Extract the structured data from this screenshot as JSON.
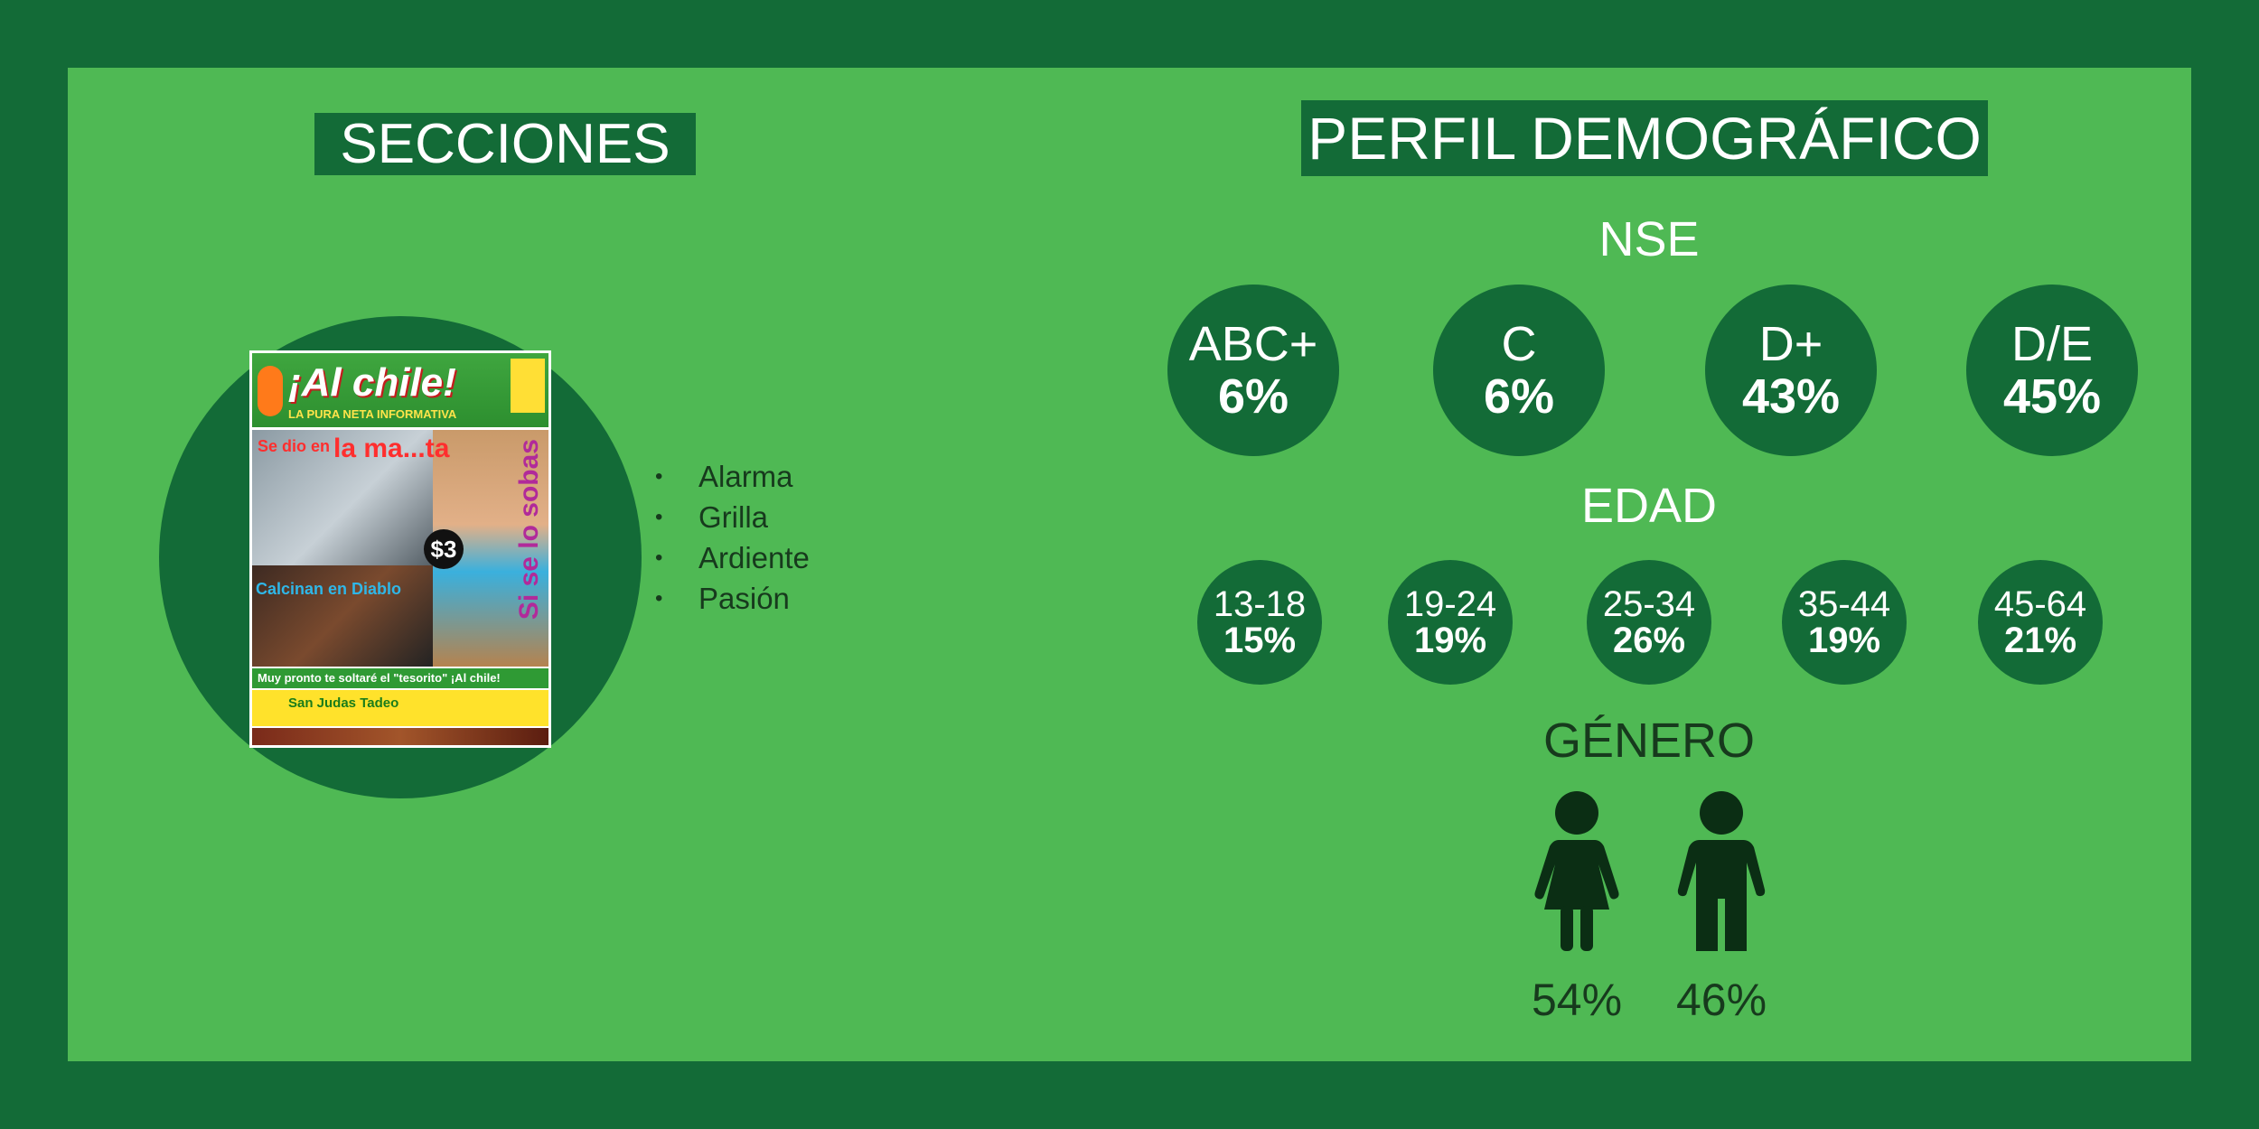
{
  "secciones": {
    "title": "SECCIONES",
    "cover": {
      "logo": "¡Al chile!",
      "tagline": "LA PURA NETA INFORMATIVA",
      "headline_small": "Se dio en",
      "headline_big": "la ma...ta",
      "side_text": "Si se lo sobas",
      "price": "$3",
      "subheadline": "Calcinan en Diablo",
      "band": "Muy pronto te soltaré el \"tesorito\" ¡Al chile!",
      "promo": "San Judas Tadeo"
    },
    "items": [
      "Alarma",
      "Grilla",
      "Ardiente",
      "Pasión"
    ]
  },
  "perfil": {
    "title": "PERFIL DEMOGRÁFICO",
    "nse": {
      "heading": "NSE",
      "items": [
        {
          "label": "ABC+",
          "value": "6%"
        },
        {
          "label": "C",
          "value": "6%"
        },
        {
          "label": "D+",
          "value": "43%"
        },
        {
          "label": "D/E",
          "value": "45%"
        }
      ]
    },
    "edad": {
      "heading": "EDAD",
      "items": [
        {
          "label": "13-18",
          "value": "15%"
        },
        {
          "label": "19-24",
          "value": "19%"
        },
        {
          "label": "25-34",
          "value": "26%"
        },
        {
          "label": "35-44",
          "value": "19%"
        },
        {
          "label": "45-64",
          "value": "21%"
        }
      ]
    },
    "genero": {
      "heading": "GÉNERO",
      "female": {
        "icon": "female-icon",
        "value": "54%"
      },
      "male": {
        "icon": "male-icon",
        "value": "46%"
      }
    }
  },
  "colors": {
    "frame": "#136b37",
    "panel": "#4fb954",
    "icon": "#0b2e14"
  }
}
